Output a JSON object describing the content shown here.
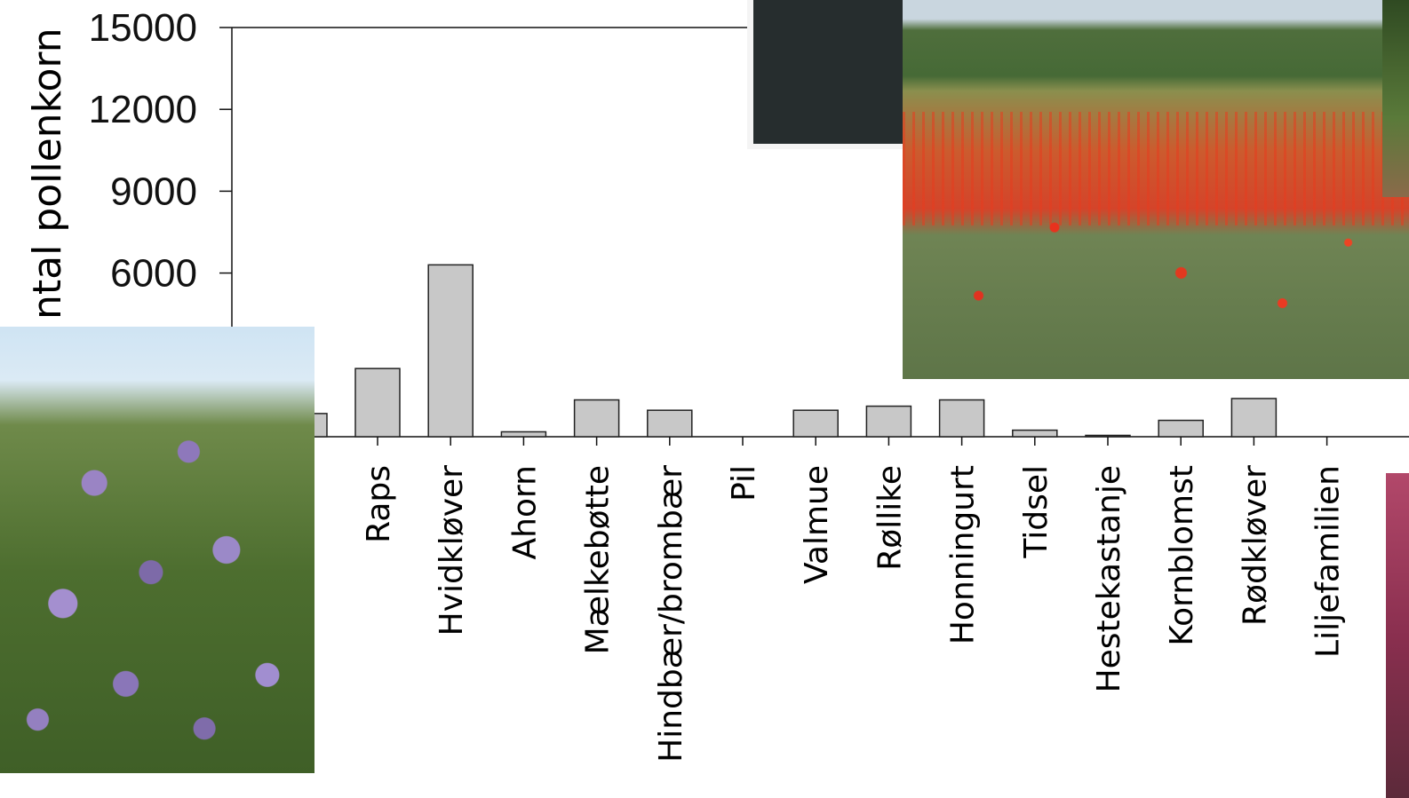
{
  "chart_data": {
    "type": "bar",
    "ylabel": "Antal pollenkorn",
    "ylabel_visible": "ntal pollenkorn",
    "ylim": [
      0,
      15000
    ],
    "yticks": [
      {
        "value": 15000,
        "label": "15000"
      },
      {
        "value": 12000,
        "label": "12000"
      },
      {
        "value": 9000,
        "label": "9000"
      },
      {
        "value": 6000,
        "label": "6000"
      }
    ],
    "categories": [
      "Raps",
      "Hvidkløver",
      "Ahorn",
      "Mælkebøtte",
      "Hindbær/brombær",
      "Pil",
      "Valmue",
      "Røllike",
      "Honningurt",
      "Tidsel",
      "Hestekastanje",
      "Kornblomst",
      "Rødkløver",
      "Liljefamilien"
    ],
    "values": [
      2500,
      6300,
      180,
      1350,
      970,
      0,
      970,
      1120,
      1350,
      240,
      50,
      600,
      1400,
      0
    ],
    "bar_color": "#c8c8c8",
    "grid": false
  },
  "images": [
    {
      "name": "phacelia-borage-photo"
    },
    {
      "name": "poppy-field-photo"
    },
    {
      "name": "color-swatches"
    }
  ],
  "colors": {
    "swatch_dark": "#262d2e",
    "swatch_navy": "#051438"
  }
}
